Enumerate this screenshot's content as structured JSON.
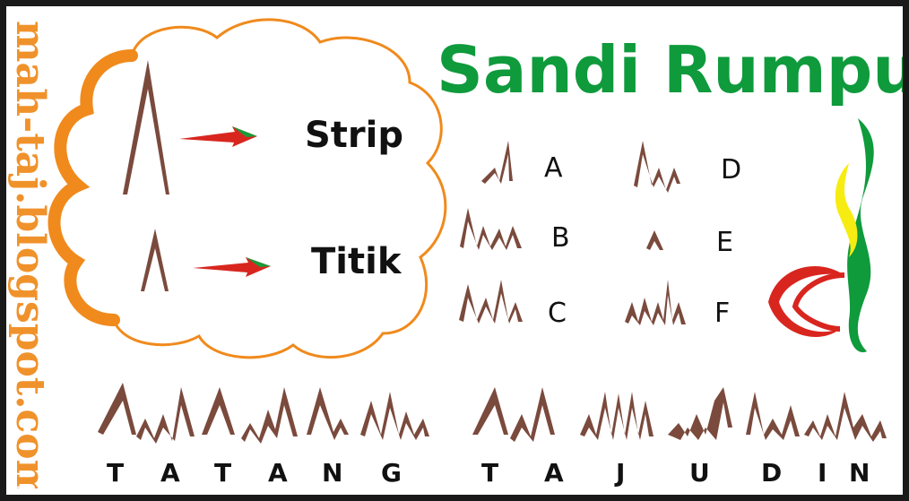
{
  "site_url": "mah-taj.blogspot.com",
  "title": "Sandi Rumput",
  "legend": {
    "dash_label": "Strip",
    "dot_label": "Titik"
  },
  "letters": [
    "A",
    "B",
    "C",
    "D",
    "E",
    "F"
  ],
  "word1": [
    "T",
    "A",
    "T",
    "A",
    "N",
    "G"
  ],
  "word2": [
    "T",
    "A",
    "J",
    "U",
    "D",
    "I",
    "N"
  ],
  "colors": {
    "grass": "#7a4a3d",
    "cloud": "#f08a1c",
    "title": "#0f9a3c",
    "arrow": "#d8261f",
    "border": "#1a1a1a"
  }
}
